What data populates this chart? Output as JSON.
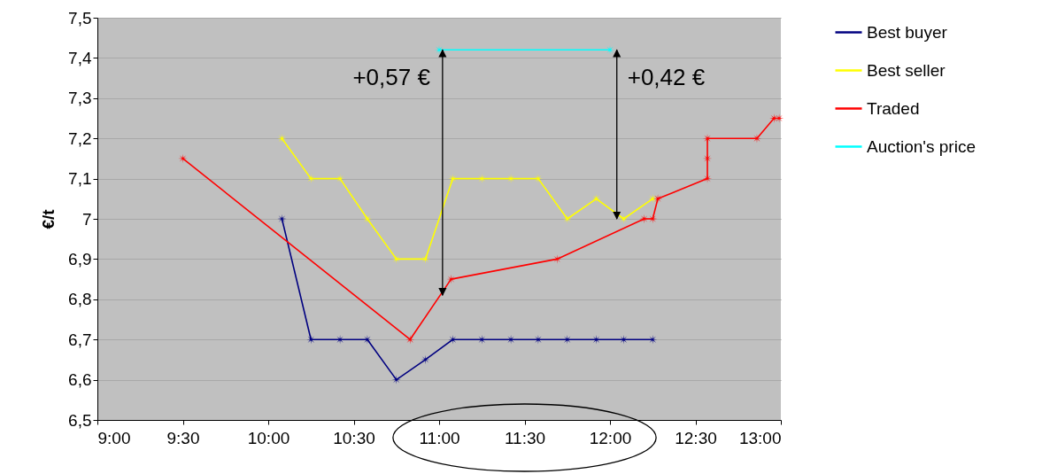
{
  "chart_data": {
    "type": "line",
    "ylabel": "€/t",
    "xlim": [
      9,
      13
    ],
    "ylim": [
      6.5,
      7.5
    ],
    "xticks": [
      {
        "value": 9,
        "label": "9:00"
      },
      {
        "value": 9.5,
        "label": "9:30"
      },
      {
        "value": 10,
        "label": "10:00"
      },
      {
        "value": 10.5,
        "label": "10:30"
      },
      {
        "value": 11,
        "label": "11:00"
      },
      {
        "value": 11.5,
        "label": "11:30"
      },
      {
        "value": 12,
        "label": "12:00"
      },
      {
        "value": 12.5,
        "label": "12:30"
      },
      {
        "value": 13,
        "label": "13:00"
      }
    ],
    "yticks": [
      {
        "value": 6.5,
        "label": "6,5"
      },
      {
        "value": 6.6,
        "label": "6,6"
      },
      {
        "value": 6.7,
        "label": "6,7"
      },
      {
        "value": 6.8,
        "label": "6,8"
      },
      {
        "value": 6.9,
        "label": "6,9"
      },
      7,
      {
        "value": 7.1,
        "label": "7,1"
      },
      {
        "value": 7.2,
        "label": "7,2"
      },
      {
        "value": 7.3,
        "label": "7,3"
      },
      {
        "value": 7.4,
        "label": "7,4"
      },
      {
        "value": 7.5,
        "label": "7,5"
      }
    ],
    "grid": "y",
    "legend": "right",
    "marker": "star",
    "line_style": "solid",
    "series": [
      {
        "name": "Best buyer",
        "color": "#000080",
        "x": [
          10.08,
          10.25,
          10.42,
          10.58,
          10.75,
          10.92,
          11.08,
          11.25,
          11.42,
          11.58,
          11.75,
          11.92,
          12.08,
          12.25
        ],
        "values": [
          7.0,
          6.7,
          6.7,
          6.7,
          6.6,
          6.65,
          6.7,
          6.7,
          6.7,
          6.7,
          6.7,
          6.7,
          6.7,
          6.7
        ]
      },
      {
        "name": "Best seller",
        "color": "#ffff00",
        "x": [
          10.08,
          10.25,
          10.42,
          10.58,
          10.75,
          10.92,
          11.08,
          11.25,
          11.42,
          11.58,
          11.75,
          11.92,
          12.08,
          12.25
        ],
        "values": [
          7.2,
          7.1,
          7.1,
          7.0,
          6.9,
          6.9,
          7.1,
          7.1,
          7.1,
          7.1,
          7.0,
          7.05,
          7.0,
          7.05
        ]
      },
      {
        "name": "Traded",
        "color": "#ff0000",
        "x": [
          9.5,
          10.83,
          11.07,
          11.69,
          12.2,
          12.25,
          12.28,
          12.57,
          12.57,
          12.57,
          12.86,
          12.96,
          12.99
        ],
        "values": [
          7.15,
          6.7,
          6.85,
          6.9,
          7.0,
          7.0,
          7.05,
          7.1,
          7.15,
          7.2,
          7.2,
          7.25,
          7.25
        ]
      },
      {
        "name": "Auction's price",
        "color": "#00ffff",
        "x": [
          11.0,
          12.0
        ],
        "values": [
          7.42,
          7.42
        ]
      }
    ],
    "annotations": [
      {
        "text": "+0,57 €",
        "x": 11.02,
        "y": 6.81
      },
      {
        "text": "+0,42 €",
        "x": 12.04,
        "y": 7.0
      }
    ]
  }
}
